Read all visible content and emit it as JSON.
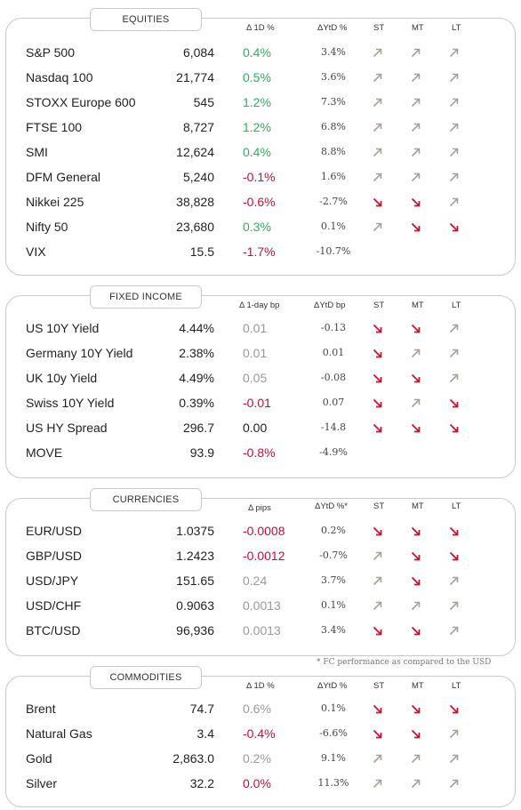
{
  "equities": {
    "title": "EQUITIES",
    "headers": {
      "chg": "Δ 1D %",
      "ytd": "ΔYtD %",
      "st": "ST",
      "mt": "MT",
      "lt": "LT"
    },
    "rows": [
      {
        "name": "S&P 500",
        "value": "6,084",
        "chg": "0.4%",
        "chg_tone": "pos",
        "ytd": "3.4%",
        "st": "up",
        "mt": "up",
        "lt": "up"
      },
      {
        "name": "Nasdaq 100",
        "value": "21,774",
        "chg": "0.5%",
        "chg_tone": "pos",
        "ytd": "3.6%",
        "st": "up",
        "mt": "up",
        "lt": "up"
      },
      {
        "name": "STOXX Europe 600",
        "value": "545",
        "chg": "1.2%",
        "chg_tone": "pos",
        "ytd": "7.3%",
        "st": "up",
        "mt": "up",
        "lt": "up"
      },
      {
        "name": "FTSE 100",
        "value": "8,727",
        "chg": "1.2%",
        "chg_tone": "pos",
        "ytd": "6.8%",
        "st": "up",
        "mt": "up",
        "lt": "up"
      },
      {
        "name": "SMI",
        "value": "12,624",
        "chg": "0.4%",
        "chg_tone": "pos",
        "ytd": "8.8%",
        "st": "up",
        "mt": "up",
        "lt": "up"
      },
      {
        "name": "DFM General",
        "value": "5,240",
        "chg": "-0.1%",
        "chg_tone": "neg",
        "ytd": "1.6%",
        "st": "up",
        "mt": "up",
        "lt": "up"
      },
      {
        "name": "Nikkei 225",
        "value": "38,828",
        "chg": "-0.6%",
        "chg_tone": "neg",
        "ytd": "-2.7%",
        "st": "down",
        "mt": "down",
        "lt": "up"
      },
      {
        "name": "Nifty  50",
        "value": "23,680",
        "chg": "0.3%",
        "chg_tone": "pos",
        "ytd": "0.1%",
        "st": "up",
        "mt": "down",
        "lt": "down"
      },
      {
        "name": "VIX",
        "value": "15.5",
        "chg": "-1.7%",
        "chg_tone": "neg",
        "ytd": "-10.7%",
        "st": "",
        "mt": "",
        "lt": ""
      }
    ]
  },
  "fixed_income": {
    "title": "FIXED INCOME",
    "headers": {
      "chg": "Δ 1-day bp",
      "ytd": "ΔYtD bp",
      "st": "ST",
      "mt": "MT",
      "lt": "LT"
    },
    "rows": [
      {
        "name": "US 10Y Yield",
        "value": "4.44%",
        "chg": "0.01",
        "chg_tone": "neu",
        "ytd": "-0.13",
        "st": "down",
        "mt": "down",
        "lt": "up"
      },
      {
        "name": "Germany 10Y Yield",
        "value": "2.38%",
        "chg": "0.01",
        "chg_tone": "neu",
        "ytd": "0.01",
        "st": "down",
        "mt": "up",
        "lt": "up"
      },
      {
        "name": "UK 10y Yield",
        "value": "4.49%",
        "chg": "0.05",
        "chg_tone": "neu",
        "ytd": "-0.08",
        "st": "down",
        "mt": "down",
        "lt": "up"
      },
      {
        "name": "Swiss 10Y Yield",
        "value": "0.39%",
        "chg": "-0.01",
        "chg_tone": "neg",
        "ytd": "0.07",
        "st": "down",
        "mt": "up",
        "lt": "down"
      },
      {
        "name": "US HY Spread",
        "value": "296.7",
        "chg": "0.00",
        "chg_tone": "plain",
        "ytd": "-14.8",
        "st": "down",
        "mt": "down",
        "lt": "down"
      },
      {
        "name": "MOVE",
        "value": "93.9",
        "chg": "-0.8%",
        "chg_tone": "neg",
        "ytd": "-4.9%",
        "st": "",
        "mt": "",
        "lt": ""
      }
    ]
  },
  "currencies": {
    "title": "CURRENCIES",
    "headers": {
      "chg": "Δ pips",
      "ytd": "ΔYtD %*",
      "st": "ST",
      "mt": "MT",
      "lt": "LT"
    },
    "rows": [
      {
        "name": "EUR/USD",
        "value": "1.0375",
        "chg": "-0.0008",
        "chg_tone": "neg",
        "ytd": "0.2%",
        "st": "down",
        "mt": "down",
        "lt": "down"
      },
      {
        "name": "GBP/USD",
        "value": "1.2423",
        "chg": "-0.0012",
        "chg_tone": "neg",
        "ytd": "-0.7%",
        "st": "up",
        "mt": "down",
        "lt": "down"
      },
      {
        "name": "USD/JPY",
        "value": "151.65",
        "chg": "0.24",
        "chg_tone": "neu",
        "ytd": "3.7%",
        "st": "up",
        "mt": "down",
        "lt": "up"
      },
      {
        "name": "USD/CHF",
        "value": "0.9063",
        "chg": "0.0013",
        "chg_tone": "neu",
        "ytd": "0.1%",
        "st": "up",
        "mt": "up",
        "lt": "up"
      },
      {
        "name": "BTC/USD",
        "value": "96,936",
        "chg": "0.0013",
        "chg_tone": "neu",
        "ytd": "3.4%",
        "st": "down",
        "mt": "down",
        "lt": "up"
      }
    ],
    "footnote": "* FC performance as compared to the USD"
  },
  "commodities": {
    "title": "COMMODITIES",
    "headers": {
      "chg": "Δ 1D %",
      "ytd": "ΔYtD %",
      "st": "ST",
      "mt": "MT",
      "lt": "LT"
    },
    "rows": [
      {
        "name": "Brent",
        "value": "74.7",
        "chg": "0.6%",
        "chg_tone": "neu",
        "ytd": "0.1%",
        "st": "down",
        "mt": "down",
        "lt": "down"
      },
      {
        "name": "Natural Gas",
        "value": "3.4",
        "chg": "-0.4%",
        "chg_tone": "neg",
        "ytd": "-6.6%",
        "st": "down",
        "mt": "down",
        "lt": "up"
      },
      {
        "name": "Gold",
        "value": "2,863.0",
        "chg": "0.2%",
        "chg_tone": "neu",
        "ytd": "9.1%",
        "st": "up",
        "mt": "up",
        "lt": "up"
      },
      {
        "name": "Silver",
        "value": "32.2",
        "chg": "0.0%",
        "chg_tone": "neg",
        "ytd": "11.3%",
        "st": "up",
        "mt": "up",
        "lt": "up"
      }
    ]
  },
  "colors": {
    "positive": "#2fae5e",
    "negative": "#c0103c",
    "neutral": "#9a9a9a",
    "arrow_up": "#a89f97",
    "arrow_down": "#c41230"
  },
  "icons": {
    "up": "arrow-up-right-icon",
    "down": "arrow-down-right-icon"
  }
}
